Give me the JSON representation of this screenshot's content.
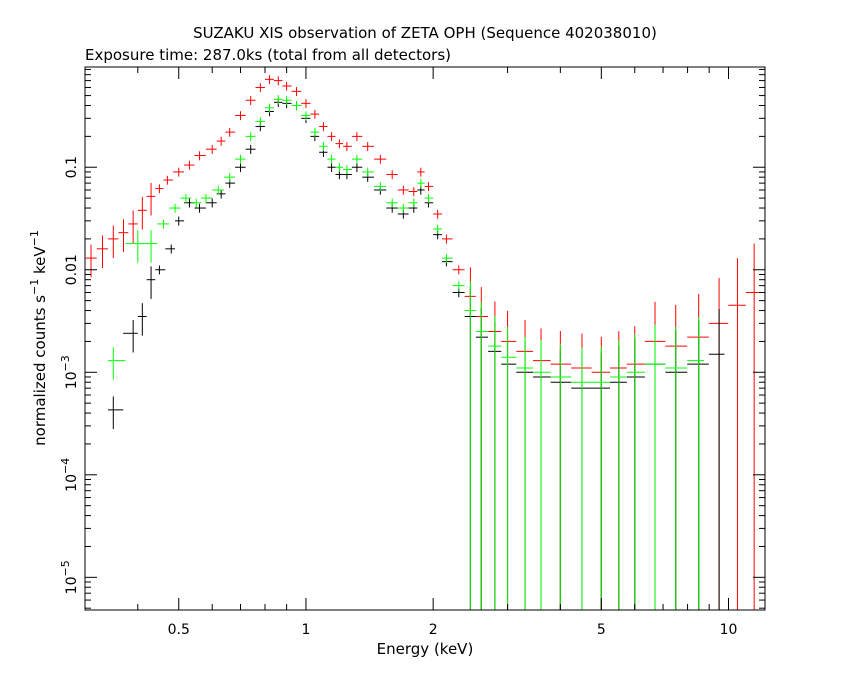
{
  "chart_data": {
    "type": "scatter",
    "title": "SUZAKU XIS observation of ZETA OPH (Sequence 402038010)",
    "subtitle": "Exposure time: 287.0ks (total from all detectors)",
    "xlabel": "Energy (keV)",
    "ylabel": {
      "base": "normalized counts s",
      "sup1": "−1",
      "mid": " keV",
      "sup2": "−1"
    },
    "x_scale": "log",
    "y_scale": "log",
    "xlim": [
      0.3,
      12.2
    ],
    "ylim": [
      4.8e-06,
      0.95
    ],
    "x_ticks": [
      {
        "value": 0.5,
        "label": "0.5"
      },
      {
        "value": 1,
        "label": "1"
      },
      {
        "value": 2,
        "label": "2"
      },
      {
        "value": 5,
        "label": "5"
      },
      {
        "value": 10,
        "label": "10"
      }
    ],
    "y_ticks": [
      {
        "value": 0.1,
        "label": "0.1",
        "base": "",
        "exp": ""
      },
      {
        "value": 0.01,
        "label": "0.01",
        "base": "",
        "exp": ""
      },
      {
        "value": 0.001,
        "label": "",
        "base": "10",
        "exp": "−3"
      },
      {
        "value": 0.0001,
        "label": "",
        "base": "10",
        "exp": "−4"
      },
      {
        "value": 1e-05,
        "label": "",
        "base": "10",
        "exp": "−5"
      }
    ],
    "grid": false,
    "series": [
      {
        "color": "#ff0000",
        "points": [
          [
            0.31,
            0.013
          ],
          [
            0.33,
            0.016
          ],
          [
            0.35,
            0.02
          ],
          [
            0.37,
            0.023
          ],
          [
            0.39,
            0.028
          ],
          [
            0.41,
            0.038
          ],
          [
            0.43,
            0.052
          ],
          [
            0.45,
            0.062
          ],
          [
            0.47,
            0.075
          ],
          [
            0.5,
            0.09
          ],
          [
            0.53,
            0.105
          ],
          [
            0.56,
            0.13
          ],
          [
            0.6,
            0.15
          ],
          [
            0.63,
            0.18
          ],
          [
            0.66,
            0.22
          ],
          [
            0.7,
            0.32
          ],
          [
            0.74,
            0.45
          ],
          [
            0.78,
            0.6
          ],
          [
            0.82,
            0.72
          ],
          [
            0.86,
            0.7
          ],
          [
            0.9,
            0.62
          ],
          [
            0.95,
            0.55
          ],
          [
            1.0,
            0.42
          ],
          [
            1.05,
            0.33
          ],
          [
            1.1,
            0.25
          ],
          [
            1.15,
            0.2
          ],
          [
            1.2,
            0.17
          ],
          [
            1.25,
            0.16
          ],
          [
            1.32,
            0.2
          ],
          [
            1.4,
            0.16
          ],
          [
            1.5,
            0.12
          ],
          [
            1.6,
            0.085
          ],
          [
            1.7,
            0.06
          ],
          [
            1.8,
            0.058
          ],
          [
            1.87,
            0.09
          ],
          [
            1.95,
            0.065
          ],
          [
            2.05,
            0.035
          ],
          [
            2.15,
            0.02
          ],
          [
            2.3,
            0.01
          ],
          [
            2.45,
            0.0055
          ],
          [
            2.6,
            0.0035
          ],
          [
            2.8,
            0.0025
          ],
          [
            3.0,
            0.002
          ],
          [
            3.3,
            0.0016
          ],
          [
            3.6,
            0.0013
          ],
          [
            4.0,
            0.0012
          ],
          [
            4.5,
            0.0011
          ],
          [
            5.0,
            0.001
          ],
          [
            5.5,
            0.0011
          ],
          [
            6.0,
            0.0012
          ],
          [
            6.7,
            0.002
          ],
          [
            7.5,
            0.0018
          ],
          [
            8.5,
            0.0022
          ],
          [
            9.5,
            0.003
          ],
          [
            10.5,
            0.0045
          ],
          [
            11.5,
            0.006
          ]
        ]
      },
      {
        "color": "#000000",
        "points": [
          [
            0.35,
            0.00043
          ],
          [
            0.39,
            0.0024
          ],
          [
            0.41,
            0.0035
          ],
          [
            0.43,
            0.008
          ],
          [
            0.45,
            0.01
          ],
          [
            0.48,
            0.016
          ],
          [
            0.5,
            0.03
          ],
          [
            0.53,
            0.045
          ],
          [
            0.56,
            0.04
          ],
          [
            0.6,
            0.045
          ],
          [
            0.63,
            0.055
          ],
          [
            0.66,
            0.07
          ],
          [
            0.7,
            0.1
          ],
          [
            0.74,
            0.15
          ],
          [
            0.78,
            0.25
          ],
          [
            0.82,
            0.35
          ],
          [
            0.86,
            0.43
          ],
          [
            0.9,
            0.42
          ],
          [
            0.95,
            0.4
          ],
          [
            1.0,
            0.3
          ],
          [
            1.05,
            0.2
          ],
          [
            1.1,
            0.14
          ],
          [
            1.15,
            0.1
          ],
          [
            1.2,
            0.085
          ],
          [
            1.25,
            0.085
          ],
          [
            1.32,
            0.1
          ],
          [
            1.4,
            0.08
          ],
          [
            1.5,
            0.06
          ],
          [
            1.6,
            0.04
          ],
          [
            1.7,
            0.035
          ],
          [
            1.8,
            0.04
          ],
          [
            1.87,
            0.06
          ],
          [
            1.95,
            0.045
          ],
          [
            2.05,
            0.022
          ],
          [
            2.15,
            0.012
          ],
          [
            2.3,
            0.006
          ],
          [
            2.45,
            0.0035
          ],
          [
            2.6,
            0.0022
          ],
          [
            2.8,
            0.0016
          ],
          [
            3.0,
            0.0012
          ],
          [
            3.3,
            0.001
          ],
          [
            3.6,
            0.0009
          ],
          [
            4.0,
            0.0008
          ],
          [
            4.5,
            0.0007
          ],
          [
            5.0,
            0.0007
          ],
          [
            5.5,
            0.0008
          ],
          [
            6.0,
            0.0009
          ],
          [
            6.7,
            0.0012
          ],
          [
            7.5,
            0.001
          ],
          [
            8.5,
            0.0012
          ],
          [
            9.5,
            0.0015
          ]
        ]
      },
      {
        "color": "#00ff00",
        "points": [
          [
            0.35,
            0.0013
          ],
          [
            0.4,
            0.018
          ],
          [
            0.43,
            0.018
          ],
          [
            0.46,
            0.028
          ],
          [
            0.49,
            0.04
          ],
          [
            0.52,
            0.05
          ],
          [
            0.55,
            0.045
          ],
          [
            0.58,
            0.05
          ],
          [
            0.62,
            0.06
          ],
          [
            0.66,
            0.08
          ],
          [
            0.7,
            0.12
          ],
          [
            0.74,
            0.2
          ],
          [
            0.78,
            0.28
          ],
          [
            0.82,
            0.38
          ],
          [
            0.86,
            0.46
          ],
          [
            0.9,
            0.45
          ],
          [
            0.95,
            0.4
          ],
          [
            1.0,
            0.32
          ],
          [
            1.05,
            0.22
          ],
          [
            1.1,
            0.16
          ],
          [
            1.15,
            0.12
          ],
          [
            1.2,
            0.1
          ],
          [
            1.25,
            0.095
          ],
          [
            1.32,
            0.12
          ],
          [
            1.4,
            0.09
          ],
          [
            1.5,
            0.065
          ],
          [
            1.6,
            0.045
          ],
          [
            1.7,
            0.04
          ],
          [
            1.8,
            0.045
          ],
          [
            1.87,
            0.07
          ],
          [
            1.95,
            0.05
          ],
          [
            2.05,
            0.025
          ],
          [
            2.15,
            0.013
          ],
          [
            2.3,
            0.007
          ],
          [
            2.45,
            0.004
          ],
          [
            2.6,
            0.0025
          ],
          [
            2.8,
            0.0018
          ],
          [
            3.0,
            0.0014
          ],
          [
            3.3,
            0.0011
          ],
          [
            3.6,
            0.001
          ],
          [
            4.0,
            0.0009
          ],
          [
            4.5,
            0.0008
          ],
          [
            5.0,
            0.0008
          ],
          [
            5.5,
            0.0009
          ],
          [
            6.0,
            0.001
          ],
          [
            6.7,
            0.0012
          ],
          [
            7.5,
            0.0011
          ],
          [
            8.5,
            0.0013
          ]
        ]
      }
    ]
  }
}
